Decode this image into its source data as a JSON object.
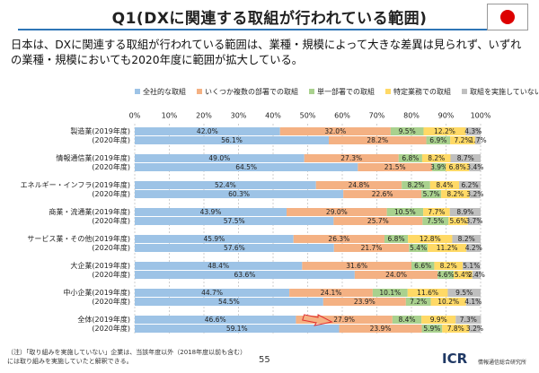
{
  "chart_data": {
    "type": "stacked-bar-horizontal",
    "title": "Q1(DXに関連する取組が行われている範囲)",
    "subtitle": "日本は、DXに関連する取組が行われている範囲は、業種・規模によって大きな差異は見られず、いずれの業種・規模においても2020年度に範囲が拡大している。",
    "footnote": "（注）「取り組みを実施していない」企業は、当該年度以外（2018年度以前も含む）には取り組みを実施していたと解釈できる。",
    "categories": [
      "製造業(2019年度)",
      "(2020年度)",
      "情報通信業(2019年度)",
      "(2020年度)",
      "エネルギー・インフラ(2019年度)",
      "(2020年度)",
      "商業・流通業(2019年度)",
      "(2020年度)",
      "サービス業・その他(2019年度)",
      "(2020年度)",
      "大企業(2019年度)",
      "(2020年度)",
      "中小企業(2019年度)",
      "(2020年度)",
      "全体(2019年度)",
      "(2020年度)"
    ],
    "series": [
      {
        "name": "全社的な取組",
        "color": "#9dc3e6",
        "values": [
          42.0,
          56.1,
          49.0,
          64.5,
          52.4,
          60.3,
          43.9,
          57.5,
          45.9,
          57.6,
          48.4,
          63.6,
          44.7,
          54.5,
          46.6,
          59.1
        ],
        "value_labels": [
          "42.0%",
          "56.1%",
          "49.0%",
          "64.5%",
          "52.4%",
          "60.3%",
          "43.9%",
          "57.5%",
          "45.9%",
          "57.6%",
          "48.4%",
          "63.6%",
          "44.7%",
          "54.5%",
          "46.6%",
          "59.1%"
        ]
      },
      {
        "name": "いくつか複数の部署での取組",
        "color": "#f4b183",
        "values": [
          32.0,
          28.2,
          27.3,
          21.5,
          24.8,
          22.6,
          29.0,
          25.7,
          26.3,
          21.7,
          31.6,
          24.0,
          24.1,
          23.9,
          27.9,
          23.9
        ],
        "value_labels": [
          "32.0%",
          "28.2%",
          "27.3%",
          "21.5%",
          "24.8%",
          "22.6%",
          "29.0%",
          "25.7%",
          "26.3%",
          "21.7%",
          "31.6%",
          "24.0%",
          "24.1%",
          "23.9%",
          "27.9%",
          "23.9%"
        ]
      },
      {
        "name": "単一部署での取組",
        "color": "#a9d18e",
        "values": [
          9.5,
          6.9,
          6.8,
          3.9,
          8.2,
          5.7,
          10.5,
          7.5,
          6.8,
          5.4,
          6.6,
          4.6,
          10.1,
          7.2,
          8.4,
          5.9
        ],
        "value_labels": [
          "9.5%",
          "6.9%",
          "6.8%",
          "3.9%",
          "8.2%",
          "5.7%",
          "10.5%",
          "7.5%",
          "6.8%",
          "5.4%",
          "6.6%",
          "4.6%",
          "10.1%",
          "7.2%",
          "8.4%",
          "5.9%"
        ]
      },
      {
        "name": "特定業務での取組",
        "color": "#ffd966",
        "values": [
          12.2,
          7.2,
          8.2,
          6.8,
          8.4,
          8.2,
          7.7,
          5.6,
          12.8,
          11.2,
          8.2,
          5.4,
          11.6,
          10.2,
          9.9,
          7.8
        ],
        "value_labels": [
          "12.2%",
          "7.2%",
          "8.2%",
          "6.8%",
          "8.4%",
          "8.2%",
          "7.7%",
          "5.6%",
          "12.8%",
          "11.2%",
          "8.2%",
          "5.4%",
          "11.6%",
          "10.2%",
          "9.9%",
          "7.8%"
        ]
      },
      {
        "name": "取組を実施していない",
        "color": "#bfbfbf",
        "values": [
          4.3,
          1.7,
          8.7,
          3.4,
          6.2,
          3.2,
          8.9,
          3.7,
          8.2,
          4.2,
          5.1,
          2.4,
          9.5,
          4.1,
          7.3,
          3.2
        ],
        "value_labels": [
          "4.3%",
          "1.7%",
          "8.7%",
          "3.4%",
          "6.2%",
          "3.2%",
          "8.9%",
          "3.7%",
          "8.2%",
          "4.2%",
          "5.1%",
          "2.4%",
          "9.5%",
          "4.1%",
          "7.3%",
          "3.2%"
        ]
      }
    ],
    "xlim": [
      0,
      100
    ],
    "xticks": [
      {
        "value": 0,
        "label": "0%"
      },
      {
        "value": 10,
        "label": "10%"
      },
      {
        "value": 20,
        "label": "20%"
      },
      {
        "value": 30,
        "label": "30%"
      },
      {
        "value": 40,
        "label": "40%"
      },
      {
        "value": 50,
        "label": "50%"
      },
      {
        "value": 60,
        "label": "60%"
      },
      {
        "value": 70,
        "label": "70%"
      },
      {
        "value": 80,
        "label": "80%"
      },
      {
        "value": 90,
        "label": "90%"
      },
      {
        "value": 100,
        "label": "100%"
      }
    ],
    "grid": true,
    "legend": "top"
  },
  "page": {
    "number": "55",
    "logo": "ICR",
    "organization": "情報通信総合研究所"
  }
}
